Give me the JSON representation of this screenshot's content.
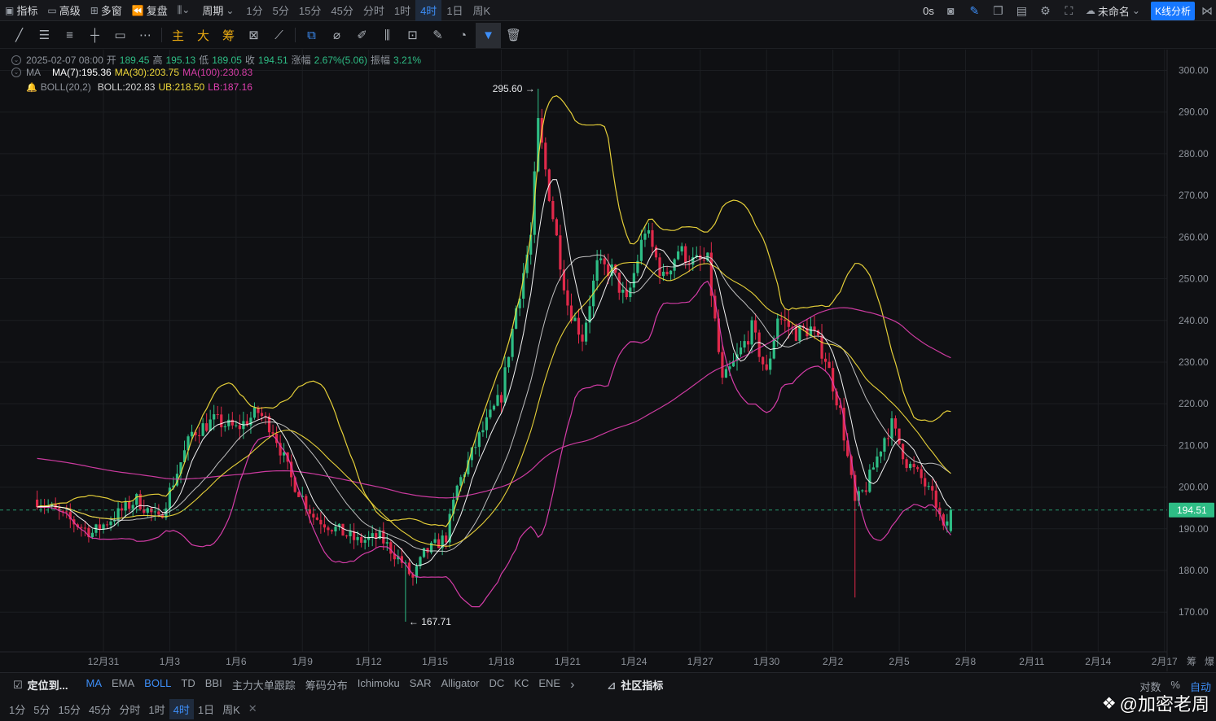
{
  "topbar": {
    "indicators_label": "指标",
    "advanced_label": "高级",
    "multi_label": "多窗",
    "replay_label": "复盘",
    "cycle_label": "周期",
    "periods": [
      "1分",
      "5分",
      "15分",
      "45分",
      "分时",
      "1时",
      "4时",
      "1日",
      "周K"
    ],
    "active_period": "4时",
    "latency": "0s",
    "layout_name": "未命名",
    "kline_button": "K线分析"
  },
  "toolbar": {
    "gold_tools": [
      "主",
      "大",
      "筹"
    ]
  },
  "legend": {
    "ohlc_time": "2025-02-07 08:00",
    "open_label": "开",
    "open": "189.45",
    "high_label": "高",
    "high": "195.13",
    "low_label": "低",
    "low": "189.05",
    "close_label": "收",
    "close": "194.51",
    "change_label": "涨幅",
    "change": "2.67%(5.06)",
    "amp_label": "振幅",
    "amp": "3.21%",
    "ma_name": "MA",
    "ma7": "MA(7):195.36",
    "ma30": "MA(30):203.75",
    "ma100": "MA(100):230.83",
    "boll_name": "BOLL(20,2)",
    "boll": "BOLL:202.83",
    "ub": "UB:218.50",
    "lb": "LB:187.16"
  },
  "colors": {
    "up": "#2ebd85",
    "down": "#e0294a",
    "ma7": "#ffffff",
    "ma30": "#f0d93b",
    "ma100": "#d63da6",
    "boll_mid": "#c9c9c9",
    "boll_ub": "#f0d93b",
    "boll_lb": "#e03fb0",
    "price_tag": "#2ebd85"
  },
  "chart_data": {
    "type": "candlestick",
    "interval": "4时",
    "y_ticks": [
      300,
      290,
      280,
      270,
      260,
      250,
      240,
      230,
      220,
      210,
      200,
      190,
      180,
      170
    ],
    "x_ticks": [
      "12月31",
      "1月3",
      "1月6",
      "1月9",
      "1月12",
      "1月15",
      "1月18",
      "1月21",
      "1月24",
      "1月27",
      "1月30",
      "2月2",
      "2月5",
      "2月8",
      "2月11",
      "2月14",
      "2月17"
    ],
    "x_tick_dates": [
      "2024-12-31",
      "2025-01-03",
      "2025-01-06",
      "2025-01-09",
      "2025-01-12",
      "2025-01-15",
      "2025-01-18",
      "2025-01-21",
      "2025-01-24",
      "2025-01-27",
      "2025-01-30",
      "2025-02-02",
      "2025-02-05",
      "2025-02-08",
      "2025-02-11",
      "2025-02-14",
      "2025-02-17"
    ],
    "axis_right_extra": "筹",
    "axis_right_extra2": "爆",
    "last_price": "194.51",
    "last_price_value": 194.51,
    "high_mark": "295.60",
    "high_mark_value": 295.6,
    "high_mark_date": "2025-01-19 16:00",
    "low_mark": "167.71",
    "low_mark_value": 167.71,
    "low_mark_date": "2025-01-13 16:00",
    "anchors": [
      {
        "t": "2024-12-28 00:00",
        "p": 197
      },
      {
        "t": "2024-12-29 12:00",
        "p": 192
      },
      {
        "t": "2024-12-30 12:00",
        "p": 189
      },
      {
        "t": "2024-12-31 12:00",
        "p": 193
      },
      {
        "t": "2025-01-01 12:00",
        "p": 197
      },
      {
        "t": "2025-01-02 12:00",
        "p": 192
      },
      {
        "t": "2025-01-03 00:00",
        "p": 199
      },
      {
        "t": "2025-01-04 00:00",
        "p": 213
      },
      {
        "t": "2025-01-05 00:00",
        "p": 216
      },
      {
        "t": "2025-01-06 00:00",
        "p": 214
      },
      {
        "t": "2025-01-07 00:00",
        "p": 218
      },
      {
        "t": "2025-01-07 16:00",
        "p": 214
      },
      {
        "t": "2025-01-08 12:00",
        "p": 202
      },
      {
        "t": "2025-01-09 12:00",
        "p": 193
      },
      {
        "t": "2025-01-10 12:00",
        "p": 190
      },
      {
        "t": "2025-01-11 12:00",
        "p": 187
      },
      {
        "t": "2025-01-12 12:00",
        "p": 188
      },
      {
        "t": "2025-01-13 12:00",
        "p": 182
      },
      {
        "t": "2025-01-14 00:00",
        "p": 178
      },
      {
        "t": "2025-01-14 12:00",
        "p": 184
      },
      {
        "t": "2025-01-15 12:00",
        "p": 188
      },
      {
        "t": "2025-01-16 00:00",
        "p": 200
      },
      {
        "t": "2025-01-17 00:00",
        "p": 212
      },
      {
        "t": "2025-01-18 00:00",
        "p": 222
      },
      {
        "t": "2025-01-18 16:00",
        "p": 243
      },
      {
        "t": "2025-01-19 08:00",
        "p": 260
      },
      {
        "t": "2025-01-19 16:00",
        "p": 287
      },
      {
        "t": "2025-01-20 08:00",
        "p": 265
      },
      {
        "t": "2025-01-21 00:00",
        "p": 244
      },
      {
        "t": "2025-01-21 16:00",
        "p": 236
      },
      {
        "t": "2025-01-22 08:00",
        "p": 253
      },
      {
        "t": "2025-01-23 00:00",
        "p": 252
      },
      {
        "t": "2025-01-23 16:00",
        "p": 244
      },
      {
        "t": "2025-01-24 12:00",
        "p": 262
      },
      {
        "t": "2025-01-25 08:00",
        "p": 250
      },
      {
        "t": "2025-01-26 00:00",
        "p": 257
      },
      {
        "t": "2025-01-26 16:00",
        "p": 254
      },
      {
        "t": "2025-01-27 08:00",
        "p": 254
      },
      {
        "t": "2025-01-28 00:00",
        "p": 225
      },
      {
        "t": "2025-01-28 16:00",
        "p": 231
      },
      {
        "t": "2025-01-29 08:00",
        "p": 238
      },
      {
        "t": "2025-01-30 00:00",
        "p": 227
      },
      {
        "t": "2025-01-30 12:00",
        "p": 241
      },
      {
        "t": "2025-01-31 08:00",
        "p": 237
      },
      {
        "t": "2025-02-01 00:00",
        "p": 238
      },
      {
        "t": "2025-02-01 16:00",
        "p": 231
      },
      {
        "t": "2025-02-02 08:00",
        "p": 218
      },
      {
        "t": "2025-02-03 00:00",
        "p": 196
      },
      {
        "t": "2025-02-03 12:00",
        "p": 200
      },
      {
        "t": "2025-02-04 08:00",
        "p": 212
      },
      {
        "t": "2025-02-04 16:00",
        "p": 215
      },
      {
        "t": "2025-02-05 08:00",
        "p": 206
      },
      {
        "t": "2025-02-06 00:00",
        "p": 202
      },
      {
        "t": "2025-02-06 16:00",
        "p": 196
      },
      {
        "t": "2025-02-07 00:00",
        "p": 189.45
      },
      {
        "t": "2025-02-07 08:00",
        "p": 194.51
      }
    ],
    "last_bar": {
      "t": "2025-02-07 08:00",
      "open": 189.45,
      "high": 195.13,
      "low": 189.05,
      "close": 194.51
    }
  },
  "indicator_bar": {
    "locate_label": "定位到...",
    "items": [
      "MA",
      "EMA",
      "BOLL",
      "TD",
      "BBI",
      "主力大单跟踪",
      "筹码分布",
      "Ichimoku",
      "SAR",
      "Alligator",
      "DC",
      "KC",
      "ENE"
    ],
    "active": [
      "MA",
      "BOLL"
    ],
    "more": "›",
    "community_label": "社区指标",
    "log_label": "对数",
    "pct_label": "%",
    "auto_label": "自动"
  },
  "period_bar": {
    "items": [
      "1分",
      "5分",
      "15分",
      "45分",
      "分时",
      "1时",
      "4时",
      "1日",
      "周K"
    ],
    "active": "4时",
    "close": "✕"
  },
  "watermark": "@加密老周"
}
